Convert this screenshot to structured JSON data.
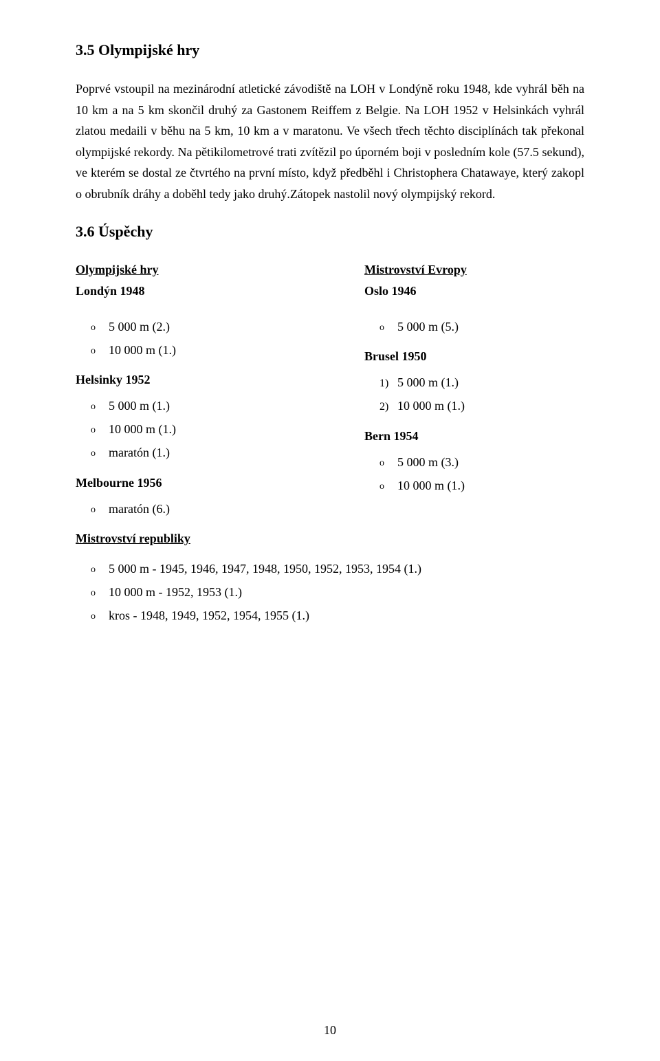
{
  "headings": {
    "h35": "3.5 Olympijské hry",
    "h36": "3.6 Úspěchy"
  },
  "paragraph": "Poprvé vstoupil na mezinárodní atletické závodiště na LOH v Londýně roku 1948, kde vyhrál běh na 10 km a na 5 km skončil druhý za Gastonem Reiffem z Belgie. Na LOH 1952 v Helsinkách vyhrál zlatou medaili v běhu na 5 km, 10 km a v maratonu. Ve všech třech těchto disciplínách tak překonal olympijské rekordy. Na pětikilometrové trati zvítězil po úporném boji v posledním kole (57.5 sekund), ve kterém se dostal ze čtvrtého na první místo, když předběhl i Christophera Chatawaye, který zakopl o obrubník dráhy a doběhl tedy jako druhý.Zátopek nastolil nový olympijský rekord.",
  "left": {
    "olympic_title": "Olympijské hry",
    "london": "Londýn 1948",
    "london_items": [
      "5 000 m (2.)",
      "10 000 m (1.)"
    ],
    "helsinki": "Helsinky 1952",
    "helsinki_items": [
      "5 000 m (1.)",
      "10 000 m (1.)",
      "maratón (1.)"
    ],
    "melbourne": "Melbourne 1956",
    "melbourne_items": [
      "maratón (6.)"
    ],
    "republic": "Mistrovství republiky"
  },
  "right": {
    "europe_title": "Mistrovství Evropy",
    "oslo": "Oslo 1946",
    "oslo_items": [
      "5 000 m (5.)"
    ],
    "brussels": "Brusel 1950",
    "brussels_items": [
      "5 000 m (1.)",
      "10 000 m (1.)"
    ],
    "bern": "Bern 1954",
    "bern_items": [
      "5 000 m (3.)",
      "10 000 m (1.)"
    ]
  },
  "republic_list": [
    "5 000 m - 1945, 1946, 1947, 1948, 1950, 1952, 1953, 1954 (1.)",
    "10 000 m - 1952, 1953 (1.)",
    "kros - 1948, 1949, 1952, 1954, 1955 (1.)"
  ],
  "page_number": "10"
}
